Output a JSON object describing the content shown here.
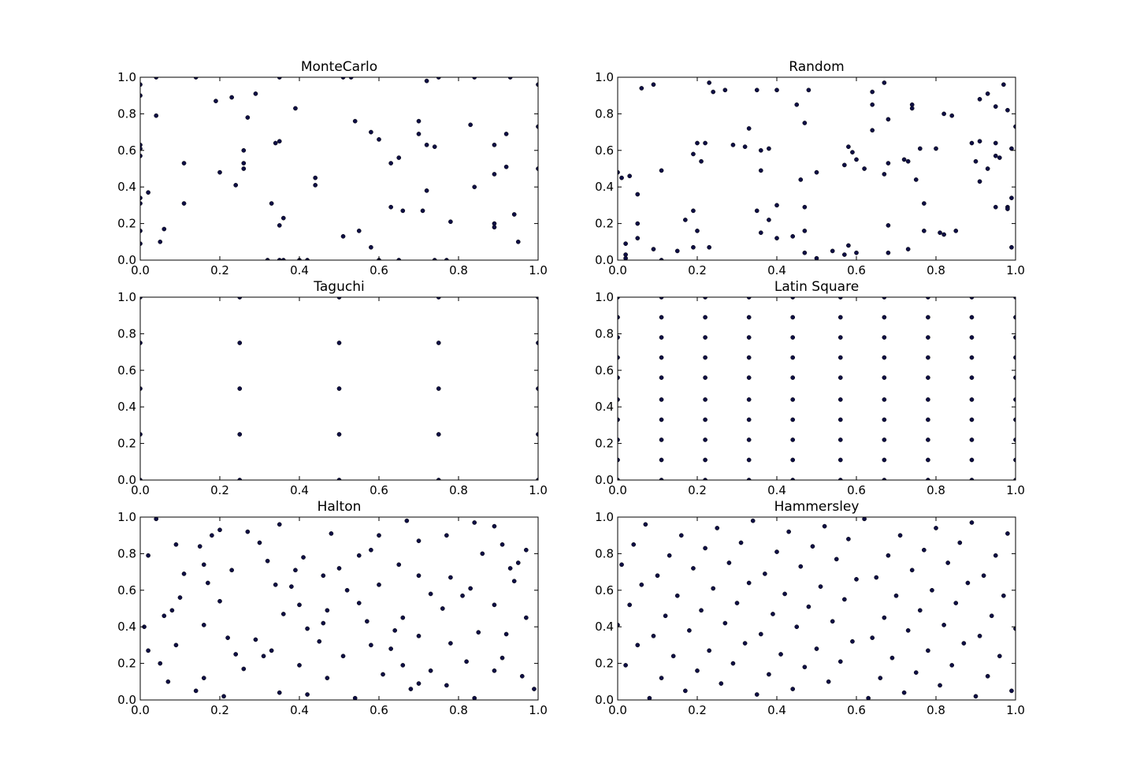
{
  "chart_data": [
    {
      "type": "scatter",
      "title": "MonteCarlo",
      "color": "#0f0f45",
      "x": [
        0,
        0,
        0.04,
        0.14,
        0.35,
        0.51,
        0.53,
        0.75,
        0.84,
        0.93,
        1,
        0.72,
        0.19,
        0.23,
        0.29,
        0.04,
        0.27,
        0.39,
        0.54,
        0.7,
        0.83,
        1,
        0.58,
        0.7,
        0.92,
        0.6,
        0,
        0.35,
        0.34,
        0.72,
        0.74,
        0.89,
        0.26,
        0,
        0,
        0.65,
        0.63,
        0.26,
        0.11,
        0.26,
        0.2,
        0.89,
        0.92,
        1,
        0.44,
        0.44,
        0.24,
        0.84,
        0.72,
        0.02,
        0,
        0,
        0.11,
        0.33,
        0.63,
        0.66,
        0.71,
        0.94,
        0.36,
        0.78,
        0.89,
        0.89,
        0.35,
        0.06,
        0.55,
        0,
        0.51,
        0.05,
        0.95,
        0.58,
        0,
        0.32,
        0.35,
        0.36,
        0.4,
        0.42,
        0.6,
        0.65,
        0.74,
        0.77
      ],
      "values": [
        0.96,
        0.9,
        1,
        1,
        1,
        1,
        1,
        1,
        1,
        1,
        0.96,
        0.98,
        0.87,
        0.89,
        0.91,
        0.79,
        0.78,
        0.83,
        0.76,
        0.76,
        0.74,
        0.73,
        0.7,
        0.69,
        0.69,
        0.66,
        0.63,
        0.65,
        0.64,
        0.63,
        0.62,
        0.63,
        0.6,
        0.61,
        0.57,
        0.56,
        0.53,
        0.53,
        0.53,
        0.5,
        0.48,
        0.47,
        0.51,
        0.5,
        0.45,
        0.41,
        0.41,
        0.4,
        0.38,
        0.37,
        0.34,
        0.31,
        0.31,
        0.31,
        0.29,
        0.27,
        0.27,
        0.25,
        0.23,
        0.21,
        0.2,
        0.18,
        0.19,
        0.17,
        0.16,
        0.16,
        0.13,
        0.1,
        0.1,
        0.07,
        0.09,
        0,
        0,
        0,
        0,
        0,
        0,
        0,
        0,
        0
      ],
      "xlim": [
        0,
        1
      ],
      "ylim": [
        0,
        1
      ],
      "xticks": [
        {
          "value": 0,
          "label": "0.0"
        },
        0.2,
        0.4,
        0.6,
        0.8,
        {
          "value": 1,
          "label": "1.0"
        }
      ],
      "yticks": [
        {
          "value": 0,
          "label": "0.0"
        },
        0.2,
        0.4,
        0.6,
        0.8,
        {
          "value": 1,
          "label": "1.0"
        }
      ]
    },
    {
      "type": "scatter",
      "title": "Random",
      "color": "#0f0f45",
      "x": [
        0.06,
        0.09,
        0.23,
        0.24,
        0.27,
        0.35,
        0.4,
        0.48,
        0.64,
        0.67,
        0.97,
        0.45,
        0.64,
        0.74,
        0.74,
        0.82,
        0.84,
        0.91,
        0.93,
        0.95,
        0.98,
        1,
        0.47,
        0.68,
        0.64,
        0.33,
        0.2,
        0.22,
        0.29,
        0.32,
        0.38,
        0.36,
        0.58,
        0.59,
        0.6,
        0.62,
        0.57,
        0.76,
        0.8,
        0.89,
        0.91,
        0.95,
        0.99,
        0.95,
        0.96,
        0.19,
        0.21,
        0.68,
        0.72,
        0.73,
        0.9,
        0.93,
        0.11,
        0.36,
        0.5,
        0.67,
        0,
        0.01,
        0.03,
        0.75,
        0.91,
        0.46,
        0.05,
        0.99,
        0.98,
        0.4,
        0.47,
        0.77,
        0.95,
        0.98,
        0.35,
        0.19,
        0.38,
        0.17,
        0.05,
        0.68,
        0.2,
        0.36,
        0.47,
        0.77,
        0.81,
        0.82,
        0.85,
        0.4,
        0.44,
        0.05,
        0.02,
        0.58,
        0.99,
        0.19,
        0.23,
        0.09,
        0.15,
        0.54,
        0.73,
        0.47,
        0.6,
        0.68,
        0.57,
        0.02,
        0.02,
        0.5,
        0.11
      ],
      "values": [
        0.94,
        0.96,
        0.97,
        0.92,
        0.93,
        0.93,
        0.93,
        0.93,
        0.92,
        0.97,
        0.96,
        0.85,
        0.85,
        0.85,
        0.83,
        0.8,
        0.79,
        0.88,
        0.91,
        0.84,
        0.82,
        0.73,
        0.75,
        0.77,
        0.71,
        0.72,
        0.64,
        0.64,
        0.63,
        0.62,
        0.61,
        0.6,
        0.62,
        0.59,
        0.55,
        0.5,
        0.52,
        0.61,
        0.61,
        0.64,
        0.65,
        0.64,
        0.61,
        0.57,
        0.56,
        0.58,
        0.54,
        0.53,
        0.55,
        0.54,
        0.54,
        0.5,
        0.49,
        0.49,
        0.48,
        0.47,
        0.48,
        0.45,
        0.46,
        0.44,
        0.43,
        0.44,
        0.36,
        0.34,
        0.29,
        0.3,
        0.29,
        0.31,
        0.29,
        0.28,
        0.27,
        0.27,
        0.22,
        0.22,
        0.2,
        0.19,
        0.16,
        0.15,
        0.16,
        0.16,
        0.15,
        0.14,
        0.16,
        0.12,
        0.13,
        0.12,
        0.09,
        0.08,
        0.07,
        0.07,
        0.07,
        0.06,
        0.05,
        0.05,
        0.06,
        0.04,
        0.04,
        0.04,
        0.03,
        0.03,
        0.01,
        0.01,
        0
      ],
      "xlim": [
        0,
        1
      ],
      "ylim": [
        0,
        1
      ],
      "xticks": [
        {
          "value": 0,
          "label": "0.0"
        },
        0.2,
        0.4,
        0.6,
        0.8,
        {
          "value": 1,
          "label": "1.0"
        }
      ],
      "yticks": [
        {
          "value": 0,
          "label": "0.0"
        },
        0.2,
        0.4,
        0.6,
        0.8,
        {
          "value": 1,
          "label": "1.0"
        }
      ]
    },
    {
      "type": "scatter",
      "title": "Taguchi",
      "color": "#0f0f45",
      "x": [
        0,
        0,
        0,
        0,
        0,
        0.25,
        0.25,
        0.25,
        0.25,
        0.25,
        0.5,
        0.5,
        0.5,
        0.5,
        0.5,
        0.75,
        0.75,
        0.75,
        0.75,
        0.75,
        1,
        1,
        1,
        1,
        1
      ],
      "values": [
        0,
        0.25,
        0.5,
        0.75,
        1,
        0,
        0.25,
        0.5,
        0.75,
        1,
        0,
        0.25,
        0.5,
        0.75,
        1,
        0,
        0.25,
        0.5,
        0.75,
        1,
        0,
        0.25,
        0.5,
        0.75,
        1
      ],
      "xlim": [
        0,
        1
      ],
      "ylim": [
        0,
        1
      ],
      "xticks": [
        {
          "value": 0,
          "label": "0.0"
        },
        0.2,
        0.4,
        0.6,
        0.8,
        {
          "value": 1,
          "label": "1.0"
        }
      ],
      "yticks": [
        {
          "value": 0,
          "label": "0.0"
        },
        0.2,
        0.4,
        0.6,
        0.8,
        {
          "value": 1,
          "label": "1.0"
        }
      ]
    },
    {
      "type": "scatter",
      "title": "Latin Square",
      "color": "#0f0f45",
      "x": [
        0,
        0,
        0,
        0,
        0,
        0,
        0,
        0,
        0,
        0,
        0.11,
        0.11,
        0.11,
        0.11,
        0.11,
        0.11,
        0.11,
        0.11,
        0.11,
        0.11,
        0.22,
        0.22,
        0.22,
        0.22,
        0.22,
        0.22,
        0.22,
        0.22,
        0.22,
        0.22,
        0.33,
        0.33,
        0.33,
        0.33,
        0.33,
        0.33,
        0.33,
        0.33,
        0.33,
        0.33,
        0.44,
        0.44,
        0.44,
        0.44,
        0.44,
        0.44,
        0.44,
        0.44,
        0.44,
        0.44,
        0.56,
        0.56,
        0.56,
        0.56,
        0.56,
        0.56,
        0.56,
        0.56,
        0.56,
        0.56,
        0.67,
        0.67,
        0.67,
        0.67,
        0.67,
        0.67,
        0.67,
        0.67,
        0.67,
        0.67,
        0.78,
        0.78,
        0.78,
        0.78,
        0.78,
        0.78,
        0.78,
        0.78,
        0.78,
        0.78,
        0.89,
        0.89,
        0.89,
        0.89,
        0.89,
        0.89,
        0.89,
        0.89,
        0.89,
        0.89,
        1,
        1,
        1,
        1,
        1,
        1,
        1,
        1,
        1,
        1
      ],
      "values": [
        0,
        0.11,
        0.22,
        0.33,
        0.44,
        0.56,
        0.67,
        0.78,
        0.89,
        1,
        0,
        0.11,
        0.22,
        0.33,
        0.44,
        0.56,
        0.67,
        0.78,
        0.89,
        1,
        0,
        0.11,
        0.22,
        0.33,
        0.44,
        0.56,
        0.67,
        0.78,
        0.89,
        1,
        0,
        0.11,
        0.22,
        0.33,
        0.44,
        0.56,
        0.67,
        0.78,
        0.89,
        1,
        0,
        0.11,
        0.22,
        0.33,
        0.44,
        0.56,
        0.67,
        0.78,
        0.89,
        1,
        0,
        0.11,
        0.22,
        0.33,
        0.44,
        0.56,
        0.67,
        0.78,
        0.89,
        1,
        0,
        0.11,
        0.22,
        0.33,
        0.44,
        0.56,
        0.67,
        0.78,
        0.89,
        1,
        0,
        0.11,
        0.22,
        0.33,
        0.44,
        0.56,
        0.67,
        0.78,
        0.89,
        1,
        0,
        0.11,
        0.22,
        0.33,
        0.44,
        0.56,
        0.67,
        0.78,
        0.89,
        1,
        0,
        0.11,
        0.22,
        0.33,
        0.44,
        0.56,
        0.67,
        0.78,
        0.89,
        1
      ],
      "xlim": [
        0,
        1
      ],
      "ylim": [
        0,
        1
      ],
      "xticks": [
        {
          "value": 0,
          "label": "0.0"
        },
        0.2,
        0.4,
        0.6,
        0.8,
        {
          "value": 1,
          "label": "1.0"
        }
      ],
      "yticks": [
        {
          "value": 0,
          "label": "0.0"
        },
        0.2,
        0.4,
        0.6,
        0.8,
        {
          "value": 1,
          "label": "1.0"
        }
      ]
    },
    {
      "type": "scatter",
      "title": "Halton",
      "color": "#0f0f45",
      "x": [
        0.04,
        0.02,
        0.09,
        0.15,
        0.18,
        0.2,
        0.27,
        0.35,
        0.67,
        0.48,
        0.6,
        0.7,
        0.77,
        0.84,
        0.89,
        0.91,
        0.86,
        0.58,
        0.55,
        0.41,
        0.3,
        0.32,
        0.97,
        0.95,
        0.93,
        0.94,
        0.5,
        0.39,
        0.23,
        0.11,
        0.16,
        0.46,
        0.65,
        0.7,
        0.78,
        0.17,
        0.34,
        0.38,
        0.52,
        0.6,
        0.83,
        0.73,
        0.81,
        0.1,
        0.2,
        0.55,
        0.89,
        0.76,
        0.08,
        0.4,
        0.47,
        0.06,
        0.36,
        0.97,
        0.66,
        0.57,
        0.46,
        0.01,
        0.16,
        0.42,
        0.64,
        0.85,
        0.22,
        0.29,
        0.7,
        0.92,
        0.45,
        0.58,
        0.78,
        0.09,
        0.02,
        0.33,
        0.63,
        0.24,
        0.31,
        0.51,
        0.91,
        0.82,
        0.05,
        0.4,
        0.66,
        0.26,
        0.73,
        0.89,
        0.61,
        0.96,
        0.16,
        0.47,
        0.07,
        0.7,
        0.77,
        0.99,
        0.14,
        0.68,
        0.35,
        0.42,
        0.21,
        0.84,
        0.54
      ],
      "values": [
        0.99,
        0.79,
        0.85,
        0.84,
        0.9,
        0.93,
        0.92,
        0.96,
        0.98,
        0.91,
        0.9,
        0.87,
        0.9,
        0.97,
        0.95,
        0.85,
        0.8,
        0.82,
        0.79,
        0.78,
        0.86,
        0.76,
        0.82,
        0.75,
        0.72,
        0.65,
        0.72,
        0.71,
        0.71,
        0.69,
        0.74,
        0.68,
        0.74,
        0.68,
        0.67,
        0.64,
        0.63,
        0.62,
        0.6,
        0.63,
        0.61,
        0.58,
        0.57,
        0.56,
        0.54,
        0.53,
        0.52,
        0.5,
        0.49,
        0.52,
        0.49,
        0.46,
        0.47,
        0.45,
        0.45,
        0.43,
        0.42,
        0.4,
        0.41,
        0.39,
        0.38,
        0.37,
        0.34,
        0.33,
        0.35,
        0.36,
        0.32,
        0.3,
        0.31,
        0.3,
        0.27,
        0.27,
        0.28,
        0.25,
        0.24,
        0.24,
        0.23,
        0.21,
        0.2,
        0.19,
        0.19,
        0.17,
        0.16,
        0.16,
        0.14,
        0.13,
        0.12,
        0.12,
        0.1,
        0.09,
        0.08,
        0.06,
        0.05,
        0.06,
        0.04,
        0.03,
        0.02,
        0.01,
        0.01
      ],
      "xlim": [
        0,
        1
      ],
      "ylim": [
        0,
        1
      ],
      "xticks": [
        {
          "value": 0,
          "label": "0.0"
        },
        0.2,
        0.4,
        0.6,
        0.8,
        {
          "value": 1,
          "label": "1.0"
        }
      ],
      "yticks": [
        {
          "value": 0,
          "label": "0.0"
        },
        0.2,
        0.4,
        0.6,
        0.8,
        {
          "value": 1,
          "label": "1.0"
        }
      ]
    },
    {
      "type": "scatter",
      "title": "Hammersley",
      "color": "#0f0f45",
      "x": [
        0,
        0.01,
        0.02,
        0.03,
        0.04,
        0.05,
        0.06,
        0.07,
        0.08,
        0.09,
        0.1,
        0.11,
        0.12,
        0.13,
        0.14,
        0.15,
        0.16,
        0.17,
        0.18,
        0.19,
        0.2,
        0.21,
        0.22,
        0.23,
        0.24,
        0.25,
        0.26,
        0.27,
        0.28,
        0.29,
        0.3,
        0.31,
        0.32,
        0.33,
        0.34,
        0.35,
        0.36,
        0.37,
        0.38,
        0.39,
        0.4,
        0.41,
        0.42,
        0.43,
        0.44,
        0.45,
        0.46,
        0.47,
        0.48,
        0.49,
        0.5,
        0.51,
        0.52,
        0.53,
        0.54,
        0.55,
        0.56,
        0.57,
        0.58,
        0.59,
        0.6,
        0.62,
        0.63,
        0.64,
        0.65,
        0.66,
        0.67,
        0.68,
        0.69,
        0.7,
        0.71,
        0.72,
        0.73,
        0.74,
        0.75,
        0.76,
        0.77,
        0.78,
        0.79,
        0.8,
        0.81,
        0.82,
        0.83,
        0.84,
        0.85,
        0.86,
        0.87,
        0.88,
        0.89,
        0.9,
        0.91,
        0.92,
        0.93,
        0.94,
        0.95,
        0.96,
        0.97,
        0.98,
        0.99,
        1
      ],
      "values": [
        0.41,
        0.74,
        0.19,
        0.52,
        0.85,
        0.3,
        0.63,
        0.96,
        0.01,
        0.35,
        0.68,
        0.12,
        0.46,
        0.79,
        0.24,
        0.57,
        0.9,
        0.05,
        0.38,
        0.72,
        0.16,
        0.49,
        0.83,
        0.27,
        0.61,
        0.94,
        0.09,
        0.42,
        0.75,
        0.2,
        0.53,
        0.86,
        0.31,
        0.64,
        0.98,
        0.03,
        0.36,
        0.69,
        0.14,
        0.47,
        0.81,
        0.25,
        0.58,
        0.92,
        0.06,
        0.4,
        0.73,
        0.18,
        0.51,
        0.84,
        0.28,
        0.62,
        0.95,
        0.1,
        0.43,
        0.77,
        0.21,
        0.55,
        0.88,
        0.32,
        0.66,
        0.99,
        0.01,
        0.34,
        0.67,
        0.12,
        0.45,
        0.79,
        0.23,
        0.57,
        0.9,
        0.04,
        0.38,
        0.71,
        0.15,
        0.49,
        0.82,
        0.27,
        0.6,
        0.94,
        0.08,
        0.41,
        0.75,
        0.19,
        0.53,
        0.86,
        0.31,
        0.64,
        0.97,
        0.02,
        0.35,
        0.68,
        0.13,
        0.46,
        0.79,
        0.24,
        0.57,
        0.91,
        0.05,
        0.39
      ],
      "xlim": [
        0,
        1
      ],
      "ylim": [
        0,
        1
      ],
      "xticks": [
        {
          "value": 0,
          "label": "0.0"
        },
        0.2,
        0.4,
        0.6,
        0.8,
        {
          "value": 1,
          "label": "1.0"
        }
      ],
      "yticks": [
        {
          "value": 0,
          "label": "0.0"
        },
        0.2,
        0.4,
        0.6,
        0.8,
        {
          "value": 1,
          "label": "1.0"
        }
      ]
    }
  ]
}
